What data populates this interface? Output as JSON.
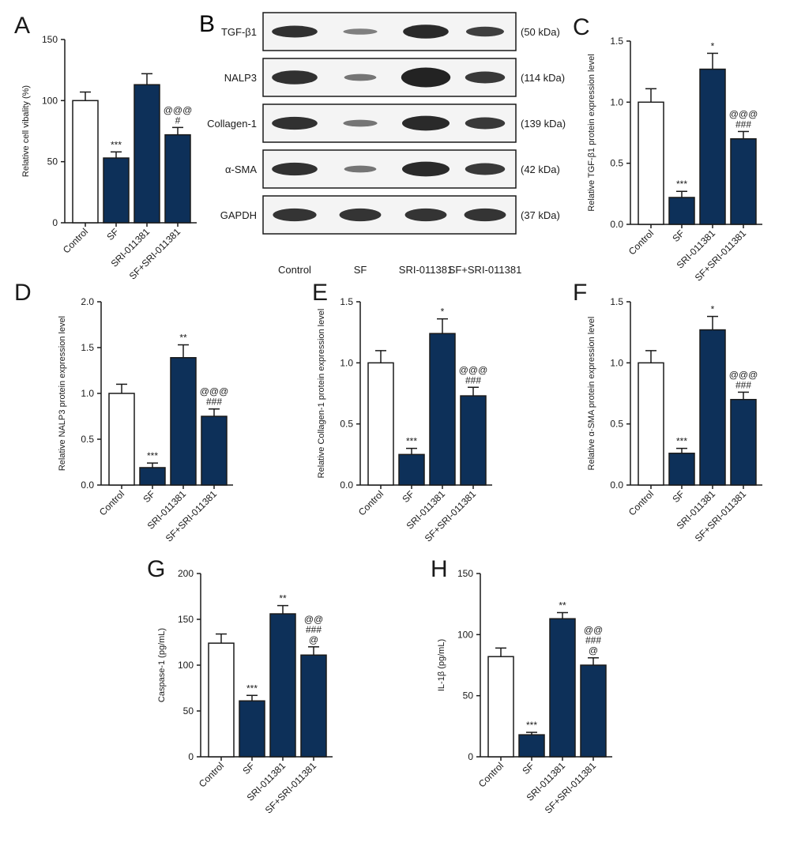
{
  "colors": {
    "control_fill": "#ffffff",
    "treated_fill": "#0d3059",
    "stroke": "#1a1a1a",
    "text": "#1a1a1a"
  },
  "categories": [
    "Control",
    "SF",
    "SRI-011381",
    "SF+SRI-011381"
  ],
  "blot": {
    "panel_label": "B",
    "lanes": [
      "Control",
      "SF",
      "SRI-011381",
      "SF+SRI-011381"
    ],
    "rows": [
      {
        "protein": "TGF-β1",
        "size": "(50 kDa)"
      },
      {
        "protein": "NALP3",
        "size": "(114 kDa)"
      },
      {
        "protein": "Collagen-1",
        "size": "(139 kDa)"
      },
      {
        "protein": "α-SMA",
        "size": "(42 kDa)"
      },
      {
        "protein": "GAPDH",
        "size": "(37 kDa)"
      }
    ]
  },
  "chart_data": [
    {
      "panel": "A",
      "type": "bar",
      "ylabel": "Relative cell vibality (%)",
      "ylim": [
        0,
        150
      ],
      "ticks": [
        "0",
        "50",
        "100",
        "150"
      ],
      "tick_values": [
        0,
        50,
        100,
        150
      ],
      "categories": [
        "Control",
        "SF",
        "SRI-011381",
        "SF+SRI-011381"
      ],
      "values": [
        100,
        53,
        113,
        72
      ],
      "errors": [
        7,
        5,
        9,
        6
      ],
      "annotations": [
        [],
        [
          "***"
        ],
        [],
        [
          "@@@",
          "#"
        ]
      ]
    },
    {
      "panel": "C",
      "type": "bar",
      "ylabel": "Relative TGF-β1 protein expression level",
      "ylim": [
        0,
        1.5
      ],
      "ticks": [
        "0.0",
        "0.5",
        "1.0",
        "1.5"
      ],
      "tick_values": [
        0,
        0.5,
        1.0,
        1.5
      ],
      "categories": [
        "Control",
        "SF",
        "SRI-011381",
        "SF+SRI-011381"
      ],
      "values": [
        1.0,
        0.22,
        1.27,
        0.7
      ],
      "errors": [
        0.11,
        0.05,
        0.13,
        0.06
      ],
      "annotations": [
        [],
        [
          "***"
        ],
        [
          "*"
        ],
        [
          "@@@",
          "###"
        ]
      ]
    },
    {
      "panel": "D",
      "type": "bar",
      "ylabel": "Relative NALP3 protein expression level",
      "ylim": [
        0,
        2.0
      ],
      "ticks": [
        "0.0",
        "0.5",
        "1.0",
        "1.5",
        "2.0"
      ],
      "tick_values": [
        0,
        0.5,
        1.0,
        1.5,
        2.0
      ],
      "categories": [
        "Control",
        "SF",
        "SRI-011381",
        "SF+SRI-011381"
      ],
      "values": [
        1.0,
        0.19,
        1.39,
        0.75
      ],
      "errors": [
        0.1,
        0.05,
        0.14,
        0.08
      ],
      "annotations": [
        [],
        [
          "***"
        ],
        [
          "**"
        ],
        [
          "@@@",
          "###"
        ]
      ]
    },
    {
      "panel": "E",
      "type": "bar",
      "ylabel": "Relative Collagen-1 protein expression level",
      "ylim": [
        0,
        1.5
      ],
      "ticks": [
        "0.0",
        "0.5",
        "1.0",
        "1.5"
      ],
      "tick_values": [
        0,
        0.5,
        1.0,
        1.5
      ],
      "categories": [
        "Control",
        "SF",
        "SRI-011381",
        "SF+SRI-011381"
      ],
      "values": [
        1.0,
        0.25,
        1.24,
        0.73
      ],
      "errors": [
        0.1,
        0.05,
        0.12,
        0.07
      ],
      "annotations": [
        [],
        [
          "***"
        ],
        [
          "*"
        ],
        [
          "@@@",
          "###"
        ]
      ]
    },
    {
      "panel": "F",
      "type": "bar",
      "ylabel": "Relative α-SMA protein expression level",
      "ylim": [
        0,
        1.5
      ],
      "ticks": [
        "0.0",
        "0.5",
        "1.0",
        "1.5"
      ],
      "tick_values": [
        0,
        0.5,
        1.0,
        1.5
      ],
      "categories": [
        "Control",
        "SF",
        "SRI-011381",
        "SF+SRI-011381"
      ],
      "values": [
        1.0,
        0.26,
        1.27,
        0.7
      ],
      "errors": [
        0.1,
        0.04,
        0.11,
        0.06
      ],
      "annotations": [
        [],
        [
          "***"
        ],
        [
          "*"
        ],
        [
          "@@@",
          "###"
        ]
      ]
    },
    {
      "panel": "G",
      "type": "bar",
      "ylabel": "Caspase-1 (pg/mL)",
      "ylim": [
        0,
        200
      ],
      "ticks": [
        "0",
        "50",
        "100",
        "150",
        "200"
      ],
      "tick_values": [
        0,
        50,
        100,
        150,
        200
      ],
      "categories": [
        "Control",
        "SF",
        "SRI-011381",
        "SF+SRI-011381"
      ],
      "values": [
        124,
        61,
        156,
        111
      ],
      "errors": [
        10,
        6,
        9,
        9
      ],
      "annotations": [
        [],
        [
          "***"
        ],
        [
          "**"
        ],
        [
          "@@",
          "###",
          "@"
        ]
      ]
    },
    {
      "panel": "H",
      "type": "bar",
      "ylabel": "IL-1β (pg/mL)",
      "ylim": [
        0,
        150
      ],
      "ticks": [
        "0",
        "50",
        "100",
        "150"
      ],
      "tick_values": [
        0,
        50,
        100,
        150
      ],
      "categories": [
        "Control",
        "SF",
        "SRI-011381",
        "SF+SRI-011381"
      ],
      "values": [
        82,
        18,
        113,
        75
      ],
      "errors": [
        7,
        2,
        5,
        6
      ],
      "annotations": [
        [],
        [
          "***"
        ],
        [
          "**"
        ],
        [
          "@@",
          "###",
          "@"
        ]
      ]
    }
  ]
}
